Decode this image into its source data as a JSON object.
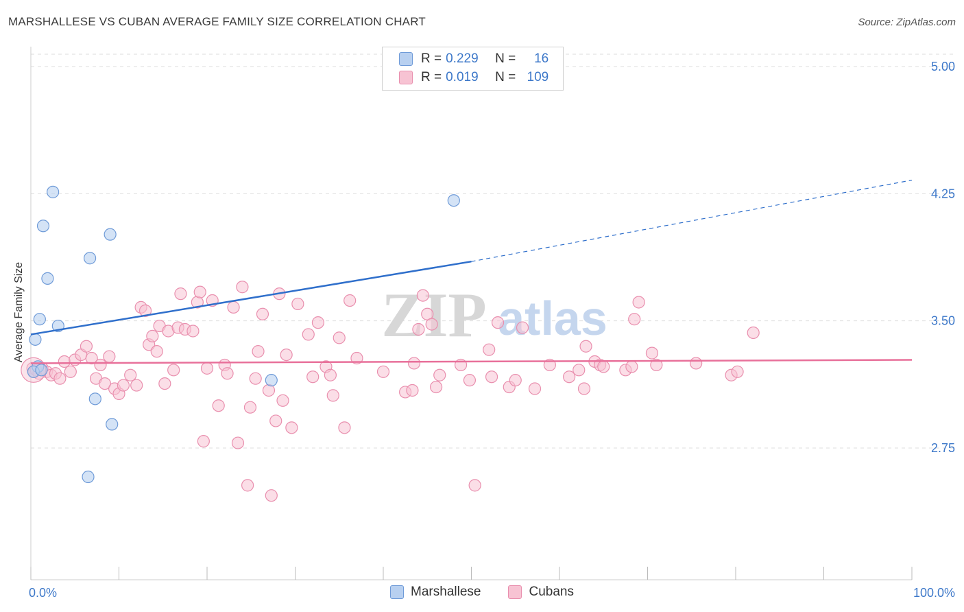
{
  "title": "MARSHALLESE VS CUBAN AVERAGE FAMILY SIZE CORRELATION CHART",
  "source": "Source: ZipAtlas.com",
  "watermark": {
    "zip": "ZIP",
    "atlas": "atlas"
  },
  "legend": {
    "r_label": "R =",
    "n_label": "N =",
    "rows": [
      {
        "name": "Marshallese",
        "r": "0.229",
        "n": "16"
      },
      {
        "name": "Cubans",
        "r": "0.019",
        "n": "109"
      }
    ]
  },
  "colors": {
    "blue_fill": "#b8d0f0",
    "blue_stroke": "#6f9bd8",
    "blue_line": "#2f6fcb",
    "pink_fill": "#f7c3d3",
    "pink_stroke": "#e98fae",
    "pink_line": "#e8709a",
    "tick_label": "#3d78c9",
    "grid": "#dddddd"
  },
  "chart_data": {
    "type": "scatter",
    "title": "MARSHALLESE VS CUBAN AVERAGE FAMILY SIZE CORRELATION CHART",
    "xlabel": "",
    "ylabel": "Average Family Size",
    "xlim": [
      0,
      100
    ],
    "ylim": [
      2.0,
      5.2
    ],
    "x_tick_labels": [
      "0.0%",
      "100.0%"
    ],
    "y_ticks": [
      2.75,
      3.5,
      4.25,
      5.0
    ],
    "y_tick_labels": [
      "2.75",
      "3.50",
      "4.25",
      "5.00"
    ],
    "series": [
      {
        "name": "Marshallese",
        "color": "#6f9bd8",
        "trend": {
          "x": [
            0,
            50
          ],
          "y": [
            3.42,
            3.85
          ],
          "dashed_to": [
            100,
            4.33
          ]
        },
        "points": [
          [
            0.5,
            3.39
          ],
          [
            0.8,
            3.23
          ],
          [
            1.0,
            3.51
          ],
          [
            1.4,
            4.06
          ],
          [
            1.9,
            3.75
          ],
          [
            2.5,
            4.26
          ],
          [
            3.1,
            3.47
          ],
          [
            6.5,
            2.58
          ],
          [
            6.7,
            3.87
          ],
          [
            7.3,
            3.04
          ],
          [
            9.0,
            4.01
          ],
          [
            9.2,
            2.89
          ],
          [
            27.3,
            3.15
          ],
          [
            48.0,
            4.21
          ],
          [
            0.3,
            3.2
          ],
          [
            1.2,
            3.21
          ]
        ]
      },
      {
        "name": "Cubans",
        "color": "#e98fae",
        "trend": {
          "x": [
            0,
            100
          ],
          "y": [
            3.25,
            3.27
          ]
        },
        "points": [
          [
            0.2,
            3.22
          ],
          [
            0.4,
            3.2
          ],
          [
            0.6,
            3.21
          ],
          [
            0.9,
            3.19
          ],
          [
            1.3,
            3.22
          ],
          [
            1.8,
            3.2
          ],
          [
            2.3,
            3.18
          ],
          [
            2.8,
            3.19
          ],
          [
            3.3,
            3.16
          ],
          [
            3.8,
            3.26
          ],
          [
            4.5,
            3.2
          ],
          [
            5.0,
            3.27
          ],
          [
            5.7,
            3.3
          ],
          [
            6.3,
            3.35
          ],
          [
            6.9,
            3.28
          ],
          [
            7.4,
            3.16
          ],
          [
            7.9,
            3.24
          ],
          [
            8.4,
            3.13
          ],
          [
            8.9,
            3.29
          ],
          [
            9.5,
            3.1
          ],
          [
            10.0,
            3.07
          ],
          [
            10.5,
            3.12
          ],
          [
            11.3,
            3.18
          ],
          [
            12.0,
            3.12
          ],
          [
            12.5,
            3.58
          ],
          [
            13.0,
            3.56
          ],
          [
            13.4,
            3.36
          ],
          [
            13.8,
            3.41
          ],
          [
            14.3,
            3.32
          ],
          [
            14.6,
            3.47
          ],
          [
            15.2,
            3.13
          ],
          [
            15.6,
            3.44
          ],
          [
            16.2,
            3.21
          ],
          [
            16.7,
            3.46
          ],
          [
            17.0,
            3.66
          ],
          [
            17.5,
            3.45
          ],
          [
            18.4,
            3.44
          ],
          [
            18.9,
            3.61
          ],
          [
            19.2,
            3.67
          ],
          [
            19.6,
            2.79
          ],
          [
            20.0,
            3.22
          ],
          [
            20.6,
            3.62
          ],
          [
            21.3,
            3.0
          ],
          [
            22.0,
            3.24
          ],
          [
            22.3,
            3.19
          ],
          [
            23.0,
            3.58
          ],
          [
            23.5,
            2.78
          ],
          [
            24.0,
            3.7
          ],
          [
            24.6,
            2.53
          ],
          [
            24.9,
            2.99
          ],
          [
            25.5,
            3.16
          ],
          [
            25.8,
            3.32
          ],
          [
            26.3,
            3.54
          ],
          [
            27.0,
            3.09
          ],
          [
            27.3,
            2.47
          ],
          [
            27.8,
            2.91
          ],
          [
            28.2,
            3.66
          ],
          [
            28.6,
            3.03
          ],
          [
            29.0,
            3.3
          ],
          [
            29.6,
            2.87
          ],
          [
            30.3,
            3.6
          ],
          [
            31.5,
            3.42
          ],
          [
            32.0,
            3.17
          ],
          [
            32.6,
            3.49
          ],
          [
            33.5,
            3.23
          ],
          [
            34.0,
            3.18
          ],
          [
            34.3,
            3.06
          ],
          [
            35.0,
            3.4
          ],
          [
            35.6,
            2.87
          ],
          [
            36.2,
            3.62
          ],
          [
            37.0,
            3.28
          ],
          [
            40.0,
            3.2
          ],
          [
            42.5,
            3.08
          ],
          [
            43.3,
            3.09
          ],
          [
            43.5,
            3.25
          ],
          [
            44.0,
            3.45
          ],
          [
            44.5,
            3.65
          ],
          [
            45.0,
            3.54
          ],
          [
            45.5,
            3.48
          ],
          [
            46.0,
            3.11
          ],
          [
            46.4,
            3.18
          ],
          [
            48.8,
            3.24
          ],
          [
            49.8,
            3.15
          ],
          [
            50.4,
            2.53
          ],
          [
            52.0,
            3.33
          ],
          [
            52.3,
            3.17
          ],
          [
            53.0,
            3.49
          ],
          [
            54.3,
            3.11
          ],
          [
            55.0,
            3.15
          ],
          [
            55.8,
            3.46
          ],
          [
            57.2,
            3.1
          ],
          [
            58.9,
            3.24
          ],
          [
            61.1,
            3.17
          ],
          [
            62.2,
            3.21
          ],
          [
            62.8,
            3.1
          ],
          [
            63.0,
            3.35
          ],
          [
            64.0,
            3.26
          ],
          [
            64.6,
            3.24
          ],
          [
            65.0,
            3.23
          ],
          [
            67.5,
            3.21
          ],
          [
            68.2,
            3.23
          ],
          [
            68.5,
            3.51
          ],
          [
            69.0,
            3.61
          ],
          [
            70.5,
            3.31
          ],
          [
            71.0,
            3.24
          ],
          [
            75.5,
            3.25
          ],
          [
            79.5,
            3.18
          ],
          [
            80.2,
            3.2
          ],
          [
            82.0,
            3.43
          ]
        ]
      }
    ]
  }
}
